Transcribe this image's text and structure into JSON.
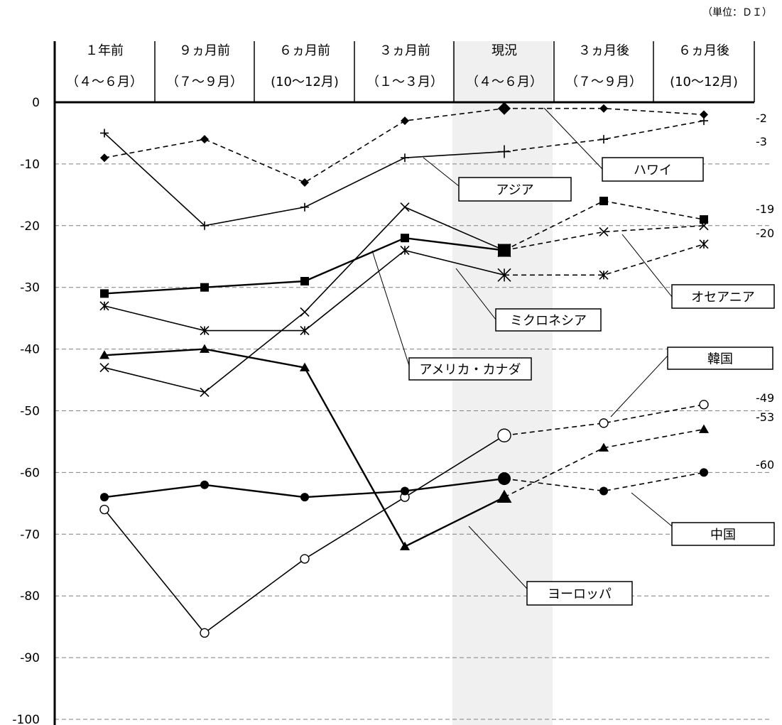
{
  "unit": "（単位：ＤＩ）",
  "chart_data": {
    "type": "line",
    "categories": [
      {
        "top": "１年前",
        "bottom": "（４～６月）"
      },
      {
        "top": "９ヵ月前",
        "bottom": "（７～９月）"
      },
      {
        "top": "６ヵ月前",
        "bottom": "(10～12月)"
      },
      {
        "top": "３ヵ月前",
        "bottom": "（１～３月）"
      },
      {
        "top": "現況",
        "bottom": "（４～６月）"
      },
      {
        "top": "３ヵ月後",
        "bottom": "（７～９月）"
      },
      {
        "top": "６ヵ月後",
        "bottom": "(10～12月)"
      }
    ],
    "ylim": [
      -100,
      0
    ],
    "yticks": [
      "0",
      "-10",
      "-20",
      "-30",
      "-40",
      "-50",
      "-60",
      "-70",
      "-80",
      "-90",
      "-100"
    ],
    "grid": true,
    "current_index": 4,
    "series": [
      {
        "name": "ハワイ",
        "marker": "diamond",
        "values": [
          -9,
          -6,
          -13,
          -3,
          -1,
          -1,
          -2
        ],
        "end_label": "-2"
      },
      {
        "name": "アジア",
        "marker": "plus",
        "values": [
          -5,
          -20,
          -17,
          -9,
          -8,
          -6,
          -3
        ],
        "end_label": "-3"
      },
      {
        "name": "オセアニア",
        "marker": "square",
        "values": [
          -31,
          -30,
          -29,
          -22,
          -24,
          -16,
          -19
        ],
        "end_label": "-19"
      },
      {
        "name": "アメリカ・カナダ",
        "marker": "cross",
        "values": [
          -43,
          -47,
          -34,
          -17,
          -24,
          -21,
          -20
        ],
        "end_label": "-20"
      },
      {
        "name": "ミクロネシア",
        "marker": "asterisk",
        "values": [
          -33,
          -37,
          -37,
          -24,
          -28,
          -28,
          -23
        ],
        "end_label": ""
      },
      {
        "name": "ヨーロッパ",
        "marker": "triangle",
        "values": [
          -41,
          -40,
          -43,
          -72,
          -64,
          -56,
          -53
        ],
        "end_label": "-53"
      },
      {
        "name": "韓国",
        "marker": "circle-open",
        "values": [
          -66,
          -86,
          -74,
          -64,
          -54,
          -52,
          -49
        ],
        "end_label": "-49"
      },
      {
        "name": "中国",
        "marker": "circle-filled",
        "values": [
          -64,
          -62,
          -64,
          -63,
          -61,
          -63,
          -60
        ],
        "end_label": "-60"
      }
    ]
  }
}
